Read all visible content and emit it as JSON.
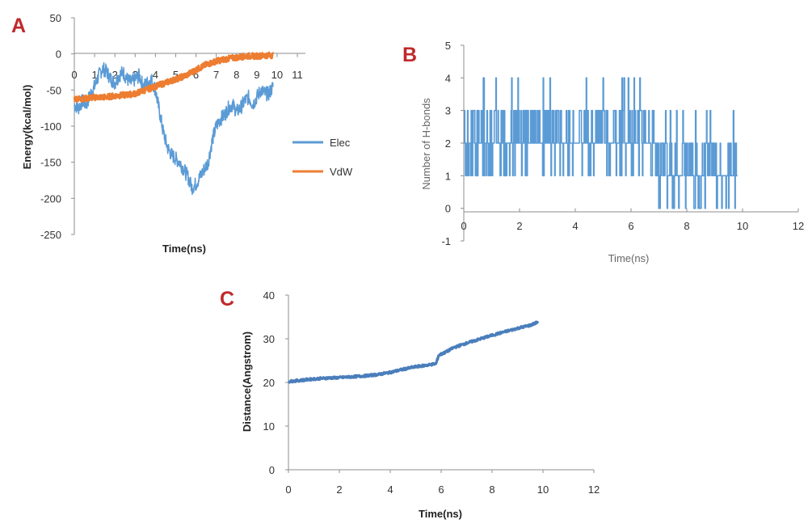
{
  "panels": {
    "A": {
      "letter": "A"
    },
    "B": {
      "letter": "B"
    },
    "C": {
      "letter": "C"
    }
  },
  "chart_data": [
    {
      "id": "A",
      "type": "line",
      "xlabel": "Time(ns)",
      "ylabel": "Energy(kcal/mol)",
      "xlim": [
        0,
        11
      ],
      "ylim": [
        -250,
        50
      ],
      "xticks": [
        0,
        1,
        2,
        3,
        4,
        5,
        6,
        7,
        8,
        9,
        10,
        11
      ],
      "yticks": [
        50,
        0,
        -50,
        -100,
        -150,
        -200,
        -250
      ],
      "legend_position": "right",
      "series": [
        {
          "name": "Elec",
          "color": "#5b9bd5",
          "x": [
            0,
            0.2,
            0.4,
            0.6,
            0.8,
            1.0,
            1.2,
            1.4,
            1.6,
            1.8,
            2.0,
            2.2,
            2.4,
            2.6,
            2.8,
            3.0,
            3.2,
            3.4,
            3.6,
            3.8,
            4.0,
            4.2,
            4.4,
            4.6,
            4.8,
            5.0,
            5.2,
            5.4,
            5.6,
            5.8,
            6.0,
            6.2,
            6.4,
            6.6,
            6.8,
            7.0,
            7.2,
            7.4,
            7.6,
            7.8,
            8.0,
            8.2,
            8.4,
            8.6,
            8.8,
            9.0,
            9.2,
            9.4,
            9.6,
            9.8
          ],
          "y": [
            -70,
            -75,
            -65,
            -70,
            -55,
            -45,
            -30,
            -20,
            -25,
            -35,
            -40,
            -30,
            -25,
            -35,
            -40,
            -35,
            -30,
            -45,
            -40,
            -35,
            -50,
            -80,
            -110,
            -130,
            -140,
            -145,
            -150,
            -160,
            -170,
            -185,
            -180,
            -170,
            -160,
            -150,
            -120,
            -100,
            -90,
            -85,
            -75,
            -70,
            -80,
            -75,
            -65,
            -60,
            -70,
            -60,
            -50,
            -55,
            -55,
            -45
          ],
          "noise": 10
        },
        {
          "name": "VdW",
          "color": "#ed7d31",
          "x": [
            0,
            0.5,
            1.0,
            1.5,
            2.0,
            2.5,
            3.0,
            3.5,
            4.0,
            4.5,
            5.0,
            5.5,
            6.0,
            6.5,
            7.0,
            7.5,
            8.0,
            8.5,
            9.0,
            9.5,
            9.8
          ],
          "y": [
            -62,
            -62,
            -60,
            -60,
            -58,
            -57,
            -55,
            -50,
            -45,
            -40,
            -35,
            -30,
            -22,
            -15,
            -10,
            -7,
            -5,
            -3,
            -3,
            -2,
            -2
          ],
          "noise": 4
        }
      ]
    },
    {
      "id": "B",
      "type": "line",
      "xlabel": "Time(ns)",
      "ylabel": "Number of H-bonds",
      "xlim": [
        0,
        12
      ],
      "ylim": [
        -1,
        5
      ],
      "xticks": [
        0,
        2,
        4,
        6,
        8,
        10,
        12
      ],
      "yticks": [
        5,
        4,
        3,
        2,
        1,
        0,
        -1
      ],
      "series": [
        {
          "name": "",
          "color": "#5b9bd5",
          "x": [
            0,
            0.3,
            0.6,
            1.0,
            1.5,
            2.0,
            2.5,
            3.0,
            3.5,
            4.0,
            4.5,
            5.0,
            5.5,
            6.0,
            6.5,
            6.8,
            7.0,
            7.5,
            7.8,
            8.0,
            8.5,
            9.0,
            9.5,
            9.8
          ],
          "y": [
            2,
            2,
            2,
            2,
            2,
            2,
            2,
            2,
            2,
            2,
            2,
            2,
            2,
            2,
            2,
            2,
            1,
            1,
            1,
            1,
            1,
            1,
            1,
            1
          ],
          "noise": 1
        }
      ]
    },
    {
      "id": "C",
      "type": "line",
      "xlabel": "Time(ns)",
      "ylabel": "Distance(Angstrom)",
      "xlim": [
        0,
        12
      ],
      "ylim": [
        0,
        40
      ],
      "xticks": [
        0,
        2,
        4,
        6,
        8,
        10,
        12
      ],
      "yticks": [
        40,
        30,
        20,
        10,
        0
      ],
      "series": [
        {
          "name": "",
          "color": "#4a7ebb",
          "x": [
            0,
            0.5,
            1.0,
            1.5,
            2.0,
            2.5,
            3.0,
            3.5,
            4.0,
            4.5,
            5.0,
            5.5,
            5.8,
            5.9,
            6.2,
            6.5,
            7.0,
            7.5,
            8.0,
            8.5,
            9.0,
            9.5,
            9.8
          ],
          "y": [
            20.2,
            20.5,
            20.8,
            21.0,
            21.1,
            21.3,
            21.5,
            21.8,
            22.3,
            23.0,
            23.6,
            24.0,
            24.3,
            26.2,
            27.0,
            28.0,
            29.0,
            29.9,
            30.8,
            31.6,
            32.4,
            33.1,
            33.8
          ],
          "noise": 0.25
        }
      ]
    }
  ]
}
